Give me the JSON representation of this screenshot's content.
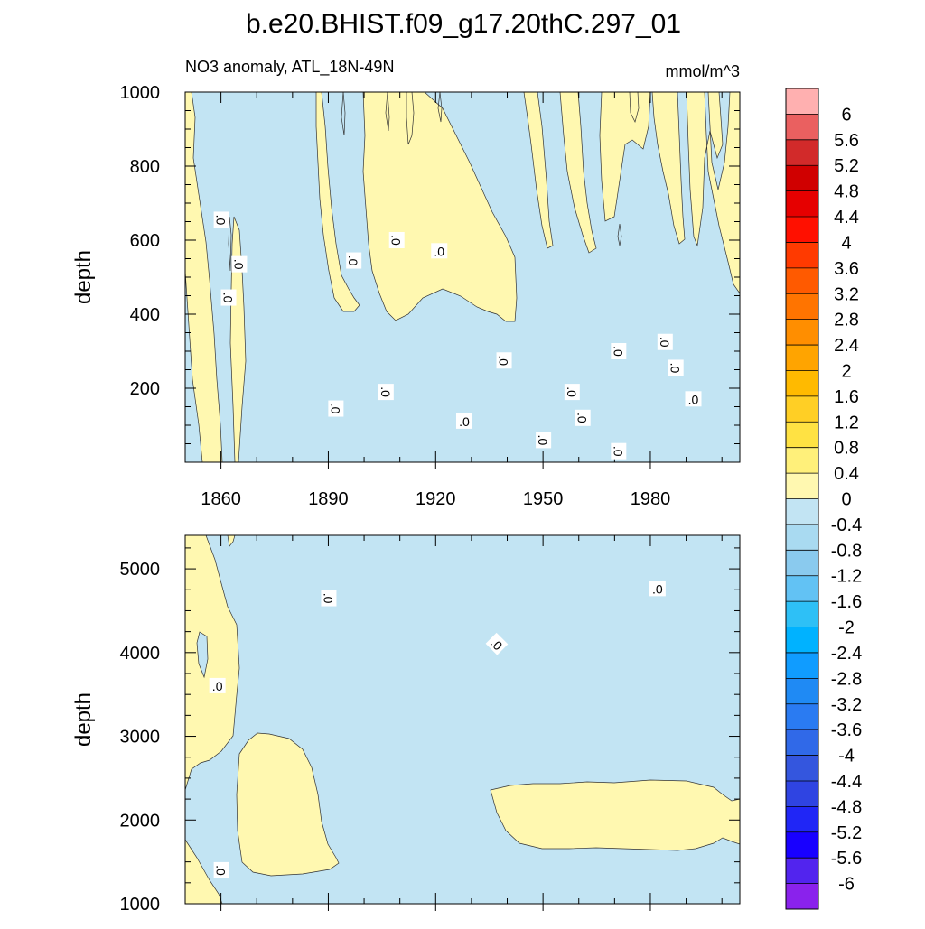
{
  "figure": {
    "title": "b.e20.BHIST.f09_g17.20thC.297_01"
  },
  "chart_data": [
    {
      "type": "contour",
      "panel": "upper",
      "left_title": "NO3 anomaly, ATL_18N-49N",
      "right_title": "mmol/m^3",
      "ylabel": "depth",
      "xlabel": "",
      "xlim": [
        1850,
        2005
      ],
      "ylim": [
        1000,
        0
      ],
      "x_ticks": [
        1860,
        1890,
        1920,
        1950,
        1980
      ],
      "y_ticks": [
        200,
        400,
        600,
        800,
        1000
      ],
      "contour_label": "0",
      "base_color": "#c2e4f3",
      "positive_color": "#fff8b0",
      "contour_labels": [
        {
          "text": ".0",
          "x": 1862,
          "y": 445,
          "rot": 90
        },
        {
          "text": ".0",
          "x": 1865,
          "y": 535,
          "rot": 90
        },
        {
          "text": ".0",
          "x": 1860,
          "y": 655,
          "rot": 90
        },
        {
          "text": ".0",
          "x": 1892,
          "y": 145,
          "rot": 90
        },
        {
          "text": ".0",
          "x": 1897,
          "y": 545,
          "rot": 90
        },
        {
          "text": ".0",
          "x": 1906,
          "y": 190,
          "rot": 90
        },
        {
          "text": ".0",
          "x": 1909,
          "y": 600,
          "rot": 90
        },
        {
          "text": ".0",
          "x": 1921,
          "y": 570,
          "rot": 0
        },
        {
          "text": ".0",
          "x": 1928,
          "y": 110,
          "rot": 0
        },
        {
          "text": ".0",
          "x": 1939,
          "y": 275,
          "rot": 90
        },
        {
          "text": ".0",
          "x": 1950,
          "y": 60,
          "rot": 90
        },
        {
          "text": ".0",
          "x": 1958,
          "y": 190,
          "rot": 90
        },
        {
          "text": ".0",
          "x": 1961,
          "y": 120,
          "rot": 90
        },
        {
          "text": ".0",
          "x": 1971,
          "y": 30,
          "rot": 90
        },
        {
          "text": ".0",
          "x": 1971,
          "y": 300,
          "rot": 90
        },
        {
          "text": ".0",
          "x": 1984,
          "y": 325,
          "rot": 90
        },
        {
          "text": ".0",
          "x": 1987,
          "y": 255,
          "rot": 90
        },
        {
          "text": ".0",
          "x": 1992,
          "y": 170,
          "rot": 0
        }
      ]
    },
    {
      "type": "contour",
      "panel": "lower",
      "ylabel": "depth",
      "xlabel": "",
      "xlim": [
        1850,
        2005
      ],
      "ylim": [
        5400,
        1000
      ],
      "x_ticks": [
        1860,
        1890,
        1920,
        1950,
        1980
      ],
      "y_ticks": [
        1000,
        2000,
        3000,
        4000,
        5000
      ],
      "contour_label": "0",
      "base_color": "#c2e4f3",
      "positive_color": "#fff8b0",
      "contour_labels": [
        {
          "text": ".0",
          "x": 1860,
          "y": 1400,
          "rot": 90
        },
        {
          "text": ".0",
          "x": 1859,
          "y": 3600,
          "rot": 0
        },
        {
          "text": ".0",
          "x": 1890,
          "y": 4650,
          "rot": 90
        },
        {
          "text": ".0",
          "x": 1937,
          "y": 4100,
          "rot": 45
        },
        {
          "text": ".0",
          "x": 1982,
          "y": 4760,
          "rot": 0
        }
      ]
    }
  ],
  "colorbar": {
    "labels": [
      "6",
      "5.6",
      "5.2",
      "4.8",
      "4.4",
      "4",
      "3.6",
      "3.2",
      "2.8",
      "2.4",
      "2",
      "1.6",
      "1.2",
      "0.8",
      "0.4",
      "0",
      "-0.4",
      "-0.8",
      "-1.2",
      "-1.6",
      "-2",
      "-2.4",
      "-2.8",
      "-3.2",
      "-3.6",
      "-4",
      "-4.4",
      "-4.8",
      "-5.2",
      "-5.6",
      "-6"
    ],
    "colors": [
      "#ffb0b0",
      "#ea6060",
      "#d22a2a",
      "#d00000",
      "#e60000",
      "#ff1000",
      "#ff3a00",
      "#ff5a00",
      "#ff7400",
      "#ff8e00",
      "#ffa400",
      "#ffba00",
      "#ffcf25",
      "#ffe243",
      "#fff07a",
      "#fff8b0",
      "#c2e4f3",
      "#a9daf1",
      "#8acaee",
      "#62c2f4",
      "#2ec0f6",
      "#00b2ff",
      "#109cff",
      "#1f8af4",
      "#2a7bf2",
      "#3069e8",
      "#3456de",
      "#2f44e2",
      "#2026f6",
      "#1800ff",
      "#5224ee",
      "#8a22ec"
    ]
  }
}
